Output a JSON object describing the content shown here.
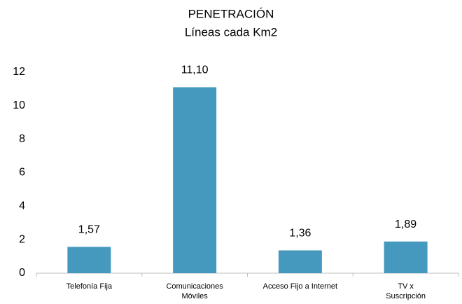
{
  "chart_data": {
    "type": "bar",
    "title": "PENETRACIÓN",
    "subtitle": "Líneas cada Km2",
    "categories": [
      "Telefonía Fija",
      "Comunicaciones Móviles",
      "Acceso Fijo a Internet",
      "TV x Suscripción"
    ],
    "values": [
      1.57,
      11.1,
      1.36,
      1.89
    ],
    "value_labels": [
      "1,57",
      "11,10",
      "1,36",
      "1,89"
    ],
    "color": "#4599be",
    "ylim": [
      0,
      12
    ],
    "yticks": [
      0,
      2,
      4,
      6,
      8,
      10,
      12
    ]
  }
}
